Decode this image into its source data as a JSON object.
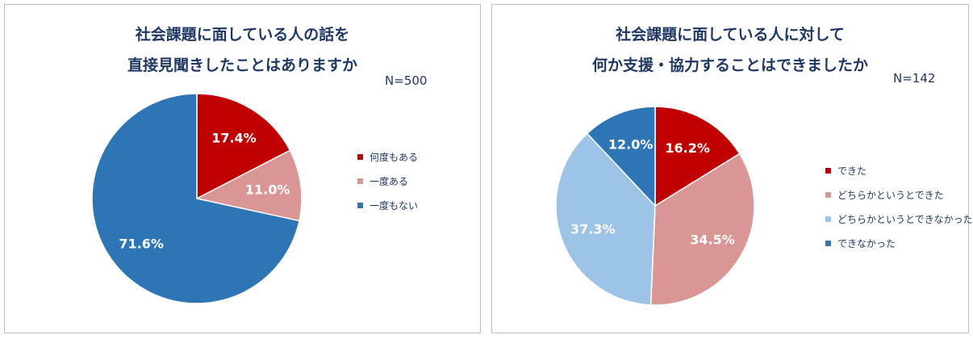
{
  "chart_data": [
    {
      "type": "pie",
      "title_line1": "社会課題に面している人の話を",
      "title_line2": "直接見聞きしたことはありますか",
      "n_label": "N=500",
      "categories": [
        "何度もある",
        "一度ある",
        "一度もない"
      ],
      "values": [
        17.4,
        11.0,
        71.6
      ],
      "value_labels": [
        "17.4%",
        "11.0%",
        "71.6%"
      ],
      "colors": [
        "#c00000",
        "#d99694",
        "#2e75b6"
      ],
      "legend": "right"
    },
    {
      "type": "pie",
      "title_line1": "社会課題に面している人に対して",
      "title_line2": "何か支援・協力することはできましたか",
      "n_label": "N=142",
      "categories": [
        "できた",
        "どちらかというとできた",
        "どちらかというとできなかった",
        "できなかった"
      ],
      "values": [
        16.2,
        34.5,
        37.3,
        12.0
      ],
      "value_labels": [
        "16.2%",
        "34.5%",
        "37.3%",
        "12.0%"
      ],
      "colors": [
        "#c00000",
        "#d99694",
        "#9dc3e6",
        "#2e75b6"
      ],
      "legend": "right"
    }
  ]
}
